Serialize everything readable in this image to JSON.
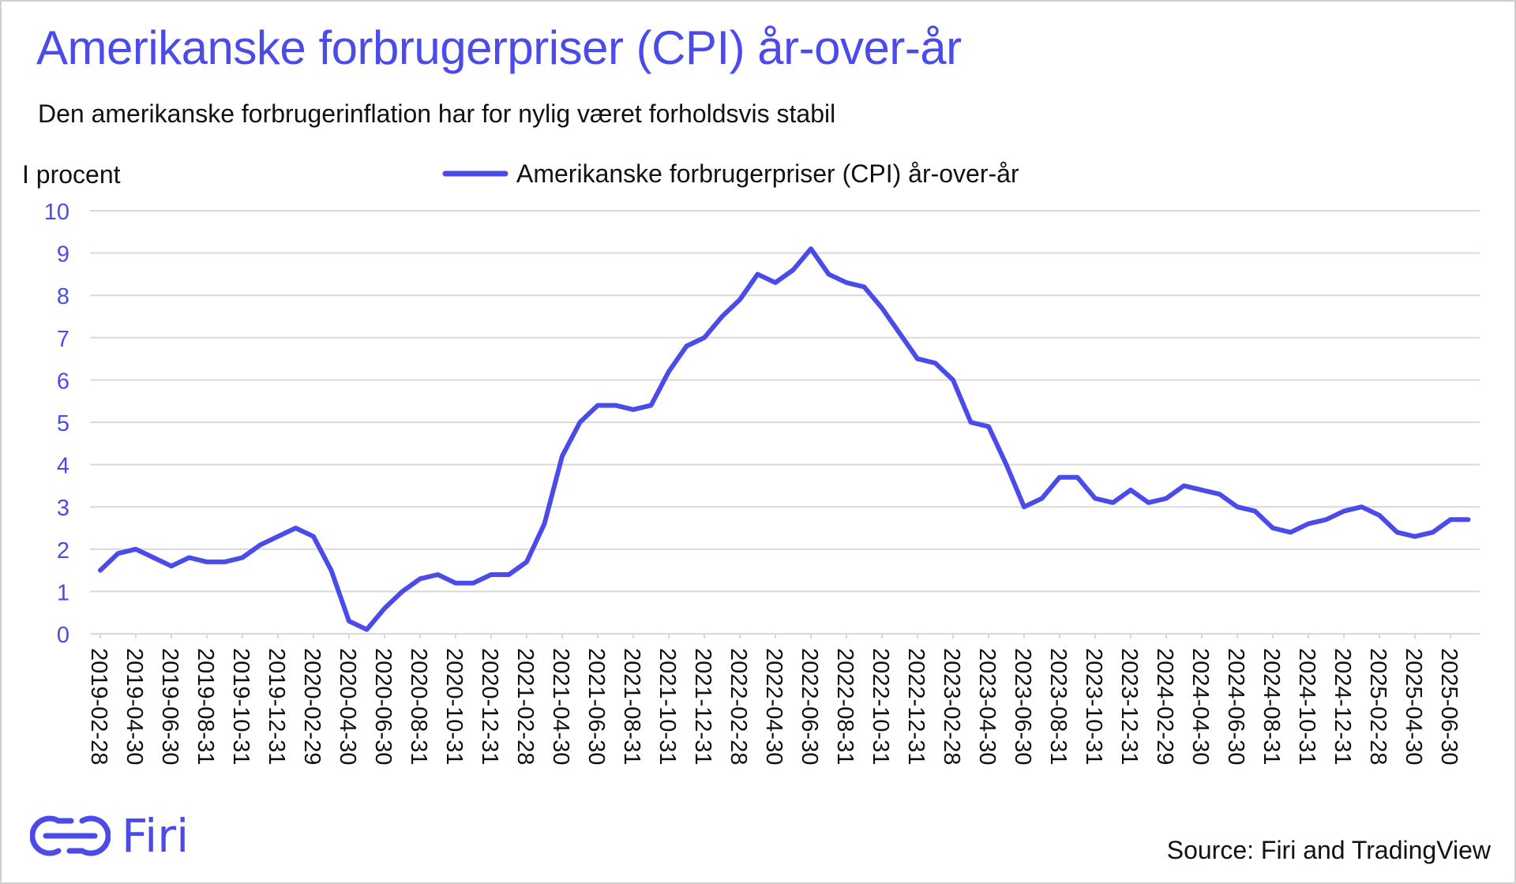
{
  "header": {
    "title": "Amerikanske forbrugerpriser (CPI) år-over-år",
    "subtitle": "Den amerikanske forbrugerinflation har for nylig været forholdsvis stabil"
  },
  "footer": {
    "brand": "Firi",
    "brand_icon": "firi-logo-icon",
    "source": "Source: Firi and TradingView"
  },
  "colors": {
    "accent": "#4b4bea",
    "grid": "#d9d9d9",
    "text": "#111111"
  },
  "chart_data": {
    "type": "line",
    "title": "Amerikanske forbrugerpriser (CPI) år-over-år",
    "ylabel": "I procent",
    "xlabel": "",
    "ylim": [
      0,
      10
    ],
    "yticks": [
      0,
      1,
      2,
      3,
      4,
      5,
      6,
      7,
      8,
      9,
      10
    ],
    "grid": true,
    "legend_position": "top-center",
    "xtick_labels": [
      "2019-02-28",
      "2019-04-30",
      "2019-06-30",
      "2019-08-31",
      "2019-10-31",
      "2019-12-31",
      "2020-02-29",
      "2020-04-30",
      "2020-06-30",
      "2020-08-31",
      "2020-10-31",
      "2020-12-31",
      "2021-02-28",
      "2021-04-30",
      "2021-06-30",
      "2021-08-31",
      "2021-10-31",
      "2021-12-31",
      "2022-02-28",
      "2022-04-30",
      "2022-06-30",
      "2022-08-31",
      "2022-10-31",
      "2022-12-31",
      "2023-02-28",
      "2023-04-30",
      "2023-06-30",
      "2023-08-31",
      "2023-10-31",
      "2023-12-31",
      "2024-02-29",
      "2024-04-30",
      "2024-06-30",
      "2024-08-31",
      "2024-10-31",
      "2024-12-31",
      "2025-02-28",
      "2025-04-30",
      "2025-06-30"
    ],
    "series": [
      {
        "name": "Amerikanske forbrugerpriser (CPI) år-over-år",
        "start": "2019-02-28",
        "frequency": "monthly",
        "values": [
          1.5,
          1.9,
          2.0,
          1.8,
          1.6,
          1.8,
          1.7,
          1.7,
          1.8,
          2.1,
          2.3,
          2.5,
          2.3,
          1.5,
          0.3,
          0.1,
          0.6,
          1.0,
          1.3,
          1.4,
          1.2,
          1.2,
          1.4,
          1.4,
          1.7,
          2.6,
          4.2,
          5.0,
          5.4,
          5.4,
          5.3,
          5.4,
          6.2,
          6.8,
          7.0,
          7.5,
          7.9,
          8.5,
          8.3,
          8.6,
          9.1,
          8.5,
          8.3,
          8.2,
          7.7,
          7.1,
          6.5,
          6.4,
          6.0,
          5.0,
          4.9,
          4.0,
          3.0,
          3.2,
          3.7,
          3.7,
          3.2,
          3.1,
          3.4,
          3.1,
          3.2,
          3.5,
          3.4,
          3.3,
          3.0,
          2.9,
          2.5,
          2.4,
          2.6,
          2.7,
          2.9,
          3.0,
          2.8,
          2.4,
          2.3,
          2.4,
          2.7,
          2.7
        ]
      }
    ]
  }
}
